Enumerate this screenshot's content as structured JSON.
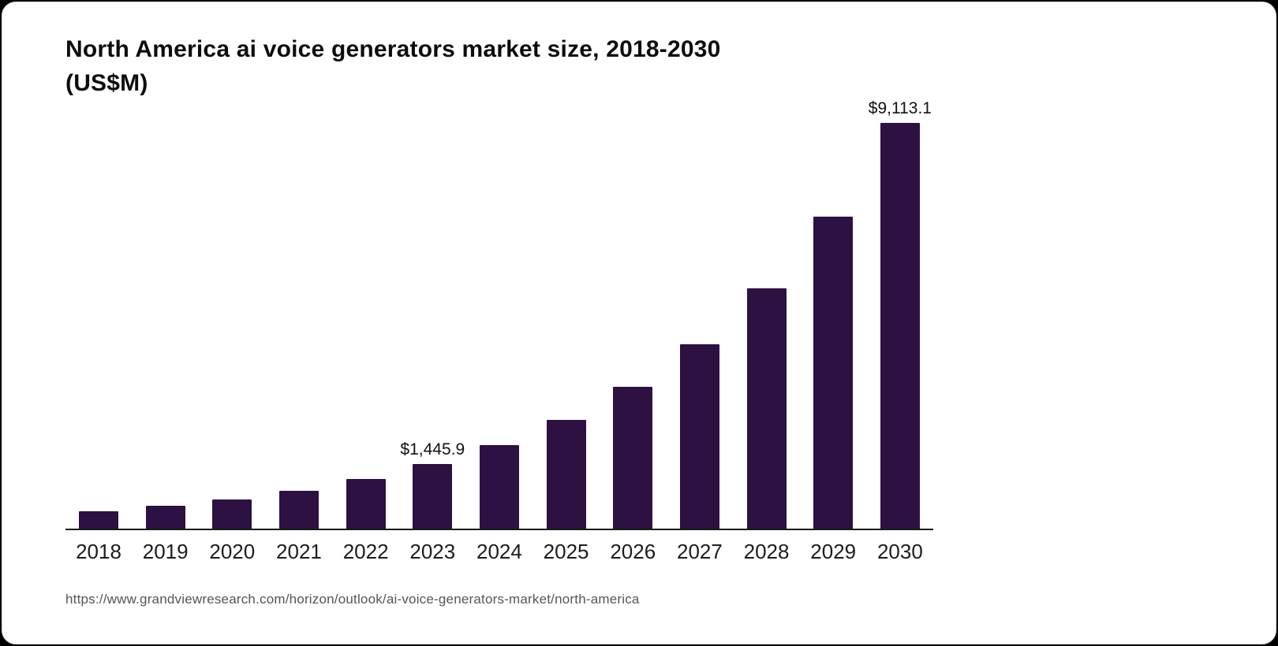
{
  "card": {
    "title_line1": "North America ai voice generators market size, 2018-2030",
    "title_line2": "(US$M)",
    "source": "https://www.grandviewresearch.com/horizon/outlook/ai-voice-generators-market/north-america"
  },
  "chart_data": {
    "type": "bar",
    "title": "North America ai voice generators market size, 2018-2030 (US$M)",
    "xlabel": "",
    "ylabel": "US$M",
    "grid": false,
    "legend": false,
    "ylim": [
      0,
      9500
    ],
    "categories": [
      "2018",
      "2019",
      "2020",
      "2021",
      "2022",
      "2023",
      "2024",
      "2025",
      "2026",
      "2027",
      "2028",
      "2029",
      "2030"
    ],
    "values": [
      390,
      505,
      660,
      855,
      1110,
      1445.9,
      1880,
      2450,
      3180,
      4140,
      5390,
      7010,
      9113.1
    ],
    "data_labels": {
      "2023": "$1,445.9",
      "2030": "$9,113.1"
    },
    "bar_color": "#2d1142",
    "axis_color": "#1a1a1a"
  }
}
